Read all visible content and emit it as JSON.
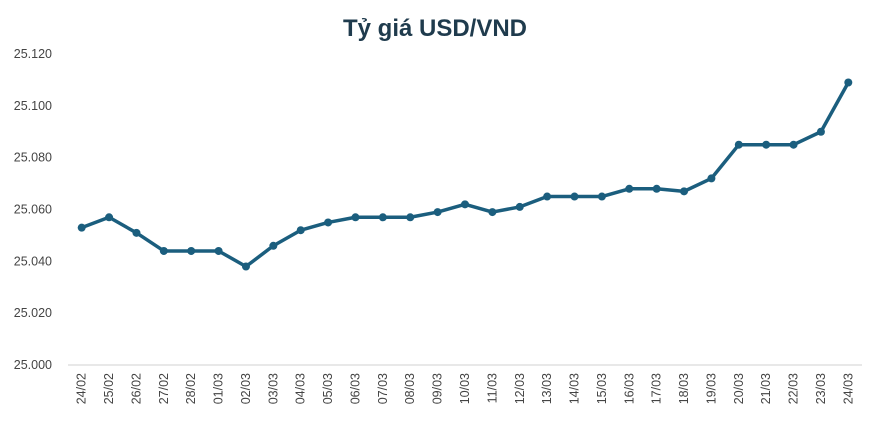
{
  "chart_data": {
    "type": "line",
    "title": "Tỷ giá USD/VND",
    "xlabel": "",
    "ylabel": "",
    "categories": [
      "24/02",
      "25/02",
      "26/02",
      "27/02",
      "28/02",
      "01/03",
      "02/03",
      "03/03",
      "04/03",
      "05/03",
      "06/03",
      "07/03",
      "08/03",
      "09/03",
      "10/03",
      "11/03",
      "12/03",
      "13/03",
      "14/03",
      "15/03",
      "16/03",
      "17/03",
      "18/03",
      "19/03",
      "20/03",
      "21/03",
      "22/03",
      "23/03",
      "24/03"
    ],
    "series": [
      {
        "values": [
          25053,
          25057,
          25051,
          25044,
          25044,
          25044,
          25038,
          25046,
          25052,
          25055,
          25057,
          25057,
          25057,
          25059,
          25062,
          25059,
          25061,
          25065,
          25065,
          25065,
          25068,
          25068,
          25067,
          25072,
          25085,
          25085,
          25085,
          25090,
          25109
        ],
        "color": "#1b5e7e"
      }
    ],
    "ylim": [
      25000,
      25120
    ],
    "yticks": [
      25000,
      25020,
      25040,
      25060,
      25080,
      25100,
      25120
    ],
    "ytick_labels": [
      "25.000",
      "25.020",
      "25.040",
      "25.060",
      "25.080",
      "25.100",
      "25.120"
    ],
    "grid": false,
    "legend": "none"
  }
}
